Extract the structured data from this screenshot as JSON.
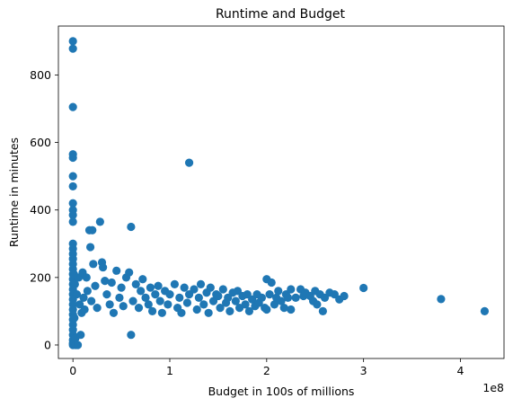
{
  "chart_data": {
    "type": "scatter",
    "title": "Runtime and Budget",
    "xlabel": "Budget in 100s of millions",
    "ylabel": "Runtime in minutes",
    "x_offset_label": "1e8",
    "xlim": [
      -15000000,
      445000000
    ],
    "ylim": [
      -40,
      945
    ],
    "x_ticks": [
      0,
      100000000,
      200000000,
      300000000,
      400000000
    ],
    "x_tick_labels": [
      "0",
      "1",
      "2",
      "3",
      "4"
    ],
    "y_ticks": [
      0,
      200,
      400,
      600,
      800
    ],
    "y_tick_labels": [
      "0",
      "200",
      "400",
      "600",
      "800"
    ],
    "grid": false,
    "marker_color": "#1f77b4",
    "points": [
      [
        0,
        900
      ],
      [
        0,
        878
      ],
      [
        0,
        705
      ],
      [
        0,
        565
      ],
      [
        0,
        555
      ],
      [
        0,
        500
      ],
      [
        0,
        470
      ],
      [
        0,
        420
      ],
      [
        0,
        400
      ],
      [
        0,
        385
      ],
      [
        0,
        365
      ],
      [
        0,
        300
      ],
      [
        0,
        285
      ],
      [
        0,
        270
      ],
      [
        0,
        255
      ],
      [
        0,
        240
      ],
      [
        0,
        225
      ],
      [
        0,
        210
      ],
      [
        0,
        195
      ],
      [
        0,
        180
      ],
      [
        0,
        165
      ],
      [
        0,
        150
      ],
      [
        0,
        135
      ],
      [
        0,
        120
      ],
      [
        0,
        105
      ],
      [
        0,
        90
      ],
      [
        0,
        75
      ],
      [
        0,
        60
      ],
      [
        0,
        45
      ],
      [
        0,
        30
      ],
      [
        0,
        15
      ],
      [
        0,
        5
      ],
      [
        0,
        0
      ],
      [
        1000000,
        210
      ],
      [
        1500000,
        80
      ],
      [
        2000000,
        180
      ],
      [
        2500000,
        20
      ],
      [
        3000000,
        0
      ],
      [
        4000000,
        150
      ],
      [
        5000000,
        0
      ],
      [
        6000000,
        200
      ],
      [
        7000000,
        120
      ],
      [
        8000000,
        30
      ],
      [
        9000000,
        95
      ],
      [
        10000000,
        215
      ],
      [
        11000000,
        140
      ],
      [
        12000000,
        105
      ],
      [
        14000000,
        200
      ],
      [
        15000000,
        160
      ],
      [
        17000000,
        340
      ],
      [
        18000000,
        290
      ],
      [
        19000000,
        130
      ],
      [
        20000000,
        340
      ],
      [
        21000000,
        240
      ],
      [
        23000000,
        175
      ],
      [
        25000000,
        110
      ],
      [
        28000000,
        365
      ],
      [
        30000000,
        245
      ],
      [
        31000000,
        230
      ],
      [
        33000000,
        190
      ],
      [
        35000000,
        150
      ],
      [
        38000000,
        120
      ],
      [
        40000000,
        185
      ],
      [
        42000000,
        95
      ],
      [
        45000000,
        220
      ],
      [
        48000000,
        140
      ],
      [
        50000000,
        170
      ],
      [
        52000000,
        115
      ],
      [
        55000000,
        200
      ],
      [
        58000000,
        215
      ],
      [
        60000000,
        350
      ],
      [
        60000000,
        30
      ],
      [
        62000000,
        130
      ],
      [
        65000000,
        180
      ],
      [
        68000000,
        110
      ],
      [
        70000000,
        160
      ],
      [
        72000000,
        195
      ],
      [
        75000000,
        140
      ],
      [
        78000000,
        120
      ],
      [
        80000000,
        170
      ],
      [
        82000000,
        100
      ],
      [
        85000000,
        150
      ],
      [
        88000000,
        175
      ],
      [
        90000000,
        130
      ],
      [
        92000000,
        95
      ],
      [
        95000000,
        160
      ],
      [
        98000000,
        120
      ],
      [
        100000000,
        150
      ],
      [
        105000000,
        180
      ],
      [
        108000000,
        110
      ],
      [
        110000000,
        140
      ],
      [
        112000000,
        95
      ],
      [
        115000000,
        170
      ],
      [
        118000000,
        125
      ],
      [
        120000000,
        540
      ],
      [
        120000000,
        150
      ],
      [
        125000000,
        165
      ],
      [
        128000000,
        105
      ],
      [
        130000000,
        140
      ],
      [
        132000000,
        180
      ],
      [
        135000000,
        120
      ],
      [
        138000000,
        155
      ],
      [
        140000000,
        95
      ],
      [
        142000000,
        170
      ],
      [
        145000000,
        130
      ],
      [
        148000000,
        150
      ],
      [
        150000000,
        145
      ],
      [
        152000000,
        110
      ],
      [
        155000000,
        165
      ],
      [
        158000000,
        125
      ],
      [
        160000000,
        140
      ],
      [
        162000000,
        100
      ],
      [
        165000000,
        155
      ],
      [
        168000000,
        130
      ],
      [
        170000000,
        160
      ],
      [
        172000000,
        110
      ],
      [
        175000000,
        145
      ],
      [
        178000000,
        120
      ],
      [
        180000000,
        150
      ],
      [
        182000000,
        100
      ],
      [
        185000000,
        135
      ],
      [
        188000000,
        115
      ],
      [
        190000000,
        150
      ],
      [
        192000000,
        125
      ],
      [
        195000000,
        140
      ],
      [
        198000000,
        110
      ],
      [
        200000000,
        195
      ],
      [
        200000000,
        105
      ],
      [
        203000000,
        150
      ],
      [
        205000000,
        185
      ],
      [
        208000000,
        120
      ],
      [
        210000000,
        140
      ],
      [
        212000000,
        160
      ],
      [
        215000000,
        130
      ],
      [
        218000000,
        110
      ],
      [
        220000000,
        150
      ],
      [
        222000000,
        140
      ],
      [
        225000000,
        105
      ],
      [
        225000000,
        165
      ],
      [
        230000000,
        140
      ],
      [
        235000000,
        165
      ],
      [
        238000000,
        145
      ],
      [
        240000000,
        155
      ],
      [
        245000000,
        145
      ],
      [
        248000000,
        130
      ],
      [
        250000000,
        160
      ],
      [
        252000000,
        120
      ],
      [
        255000000,
        150
      ],
      [
        258000000,
        100
      ],
      [
        260000000,
        140
      ],
      [
        265000000,
        155
      ],
      [
        270000000,
        150
      ],
      [
        275000000,
        135
      ],
      [
        280000000,
        145
      ],
      [
        300000000,
        169
      ],
      [
        380000000,
        136
      ],
      [
        425000000,
        100
      ]
    ]
  }
}
